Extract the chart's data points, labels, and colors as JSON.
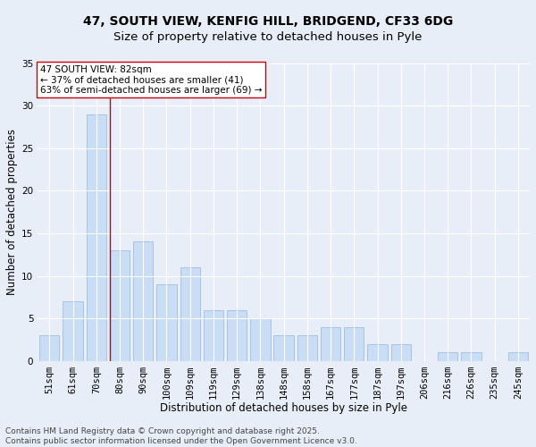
{
  "title1": "47, SOUTH VIEW, KENFIG HILL, BRIDGEND, CF33 6DG",
  "title2": "Size of property relative to detached houses in Pyle",
  "xlabel": "Distribution of detached houses by size in Pyle",
  "ylabel": "Number of detached properties",
  "categories": [
    "51sqm",
    "61sqm",
    "70sqm",
    "80sqm",
    "90sqm",
    "100sqm",
    "109sqm",
    "119sqm",
    "129sqm",
    "138sqm",
    "148sqm",
    "158sqm",
    "167sqm",
    "177sqm",
    "187sqm",
    "197sqm",
    "206sqm",
    "216sqm",
    "226sqm",
    "235sqm",
    "245sqm"
  ],
  "values": [
    3,
    7,
    29,
    13,
    14,
    9,
    11,
    6,
    6,
    5,
    3,
    3,
    4,
    4,
    2,
    2,
    0,
    1,
    1,
    0,
    1
  ],
  "bar_color": "#c9ddf5",
  "bar_edge_color": "#a0bedd",
  "background_color": "#e8eef8",
  "grid_color": "#ffffff",
  "ref_line_index": 3,
  "ref_line_color": "#cc0000",
  "annotation_title": "47 SOUTH VIEW: 82sqm",
  "annotation_line1": "← 37% of detached houses are smaller (41)",
  "annotation_line2": "63% of semi-detached houses are larger (69) →",
  "annotation_box_facecolor": "#ffffff",
  "annotation_box_edgecolor": "#cc0000",
  "ylim": [
    0,
    35
  ],
  "yticks": [
    0,
    5,
    10,
    15,
    20,
    25,
    30,
    35
  ],
  "title1_fontsize": 10,
  "title2_fontsize": 9.5,
  "axis_label_fontsize": 8.5,
  "tick_fontsize": 7.5,
  "annotation_fontsize": 7.5,
  "footer_fontsize": 6.5,
  "footer": "Contains HM Land Registry data © Crown copyright and database right 2025.\nContains public sector information licensed under the Open Government Licence v3.0."
}
